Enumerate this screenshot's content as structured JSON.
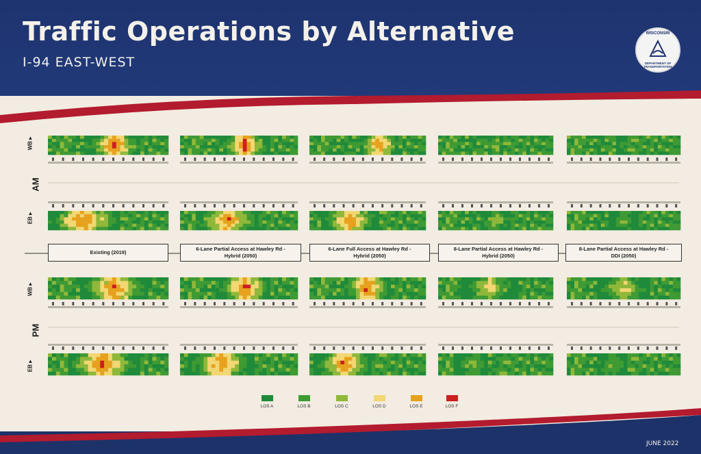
{
  "header": {
    "title": "Traffic Operations by Alternative",
    "subtitle": "I-94 EAST-WEST",
    "logo_top": "WISCONSIN",
    "logo_bottom": "DEPARTMENT OF TRANSPORTATION"
  },
  "periods": [
    "AM",
    "PM"
  ],
  "directions": [
    "WB",
    "EB"
  ],
  "alternatives": [
    {
      "line1": "Existing (2019)",
      "line2": ""
    },
    {
      "line1": "6-Lane Partial Access at Hawley Rd -",
      "line2": "Hybrid (2050)"
    },
    {
      "line1": "6-Lane Full Access at Hawley Rd -",
      "line2": "Hybrid (2050)"
    },
    {
      "line1": "8-Lane Partial Access at Hawley Rd -",
      "line2": "Hybrid (2050)"
    },
    {
      "line1": "8-Lane Partial Access at Hawley Rd -",
      "line2": "DDI (2050)"
    }
  ],
  "legend": [
    {
      "label": "LOS A",
      "color": "#1f8a3a"
    },
    {
      "label": "LOS B",
      "color": "#3f9a34"
    },
    {
      "label": "LOS C",
      "color": "#8fb83a"
    },
    {
      "label": "LOS D",
      "color": "#f2d772"
    },
    {
      "label": "LOS E",
      "color": "#e6a21e"
    },
    {
      "label": "LOS F",
      "color": "#cc1f1f"
    }
  ],
  "footer": {
    "date": "JUNE 2022"
  },
  "colors": {
    "navy": "#1d3269",
    "red_stripe": "#b31b2e",
    "panel": "#f2ece2"
  }
}
